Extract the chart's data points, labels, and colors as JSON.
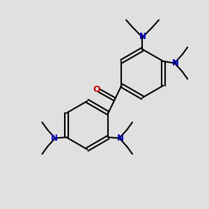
{
  "bg_color": "#e0e0e0",
  "bond_color": "#000000",
  "N_color": "#0000bb",
  "O_color": "#cc0000",
  "line_width": 1.5,
  "figsize": [
    3.0,
    3.0
  ],
  "dpi": 100,
  "xlim": [
    -6,
    6
  ],
  "ylim": [
    -6,
    6
  ]
}
